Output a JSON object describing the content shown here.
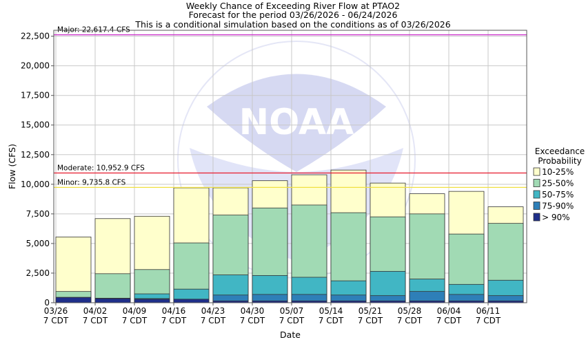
{
  "chart_data": {
    "type": "bar",
    "title": "Weekly Chance of Exceeding River Flow at PTAO2",
    "subtitle_lines": [
      "Forecast for the period 03/26/2026 - 06/24/2026",
      "This is a conditional simulation based on the conditions as of 03/26/2026"
    ],
    "xlabel": "Date",
    "ylabel": "Flow (CFS)",
    "ylim": [
      0,
      23000
    ],
    "yticks": [
      0,
      2500,
      5000,
      7500,
      10000,
      12500,
      15000,
      17500,
      20000,
      22500
    ],
    "ytick_labels": [
      "0",
      "2,500",
      "5,000",
      "7,500",
      "10,000",
      "12,500",
      "15,000",
      "17,500",
      "20,000",
      "22,500"
    ],
    "categories": [
      "03/26",
      "04/02",
      "04/09",
      "04/16",
      "04/23",
      "04/30",
      "05/07",
      "05/14",
      "05/21",
      "05/28",
      "06/04",
      "06/11"
    ],
    "category_sublabel": "7 CDT",
    "grid": true,
    "legend_title": [
      "Exceedance",
      "Probability"
    ],
    "legend_position": "right",
    "series": [
      {
        "name": "> 90%",
        "color": "#1f2f8a",
        "values": [
          450,
          350,
          300,
          300,
          150,
          150,
          150,
          150,
          150,
          150,
          150,
          150
        ]
      },
      {
        "name": "75-90%",
        "color": "#2e7fb8",
        "values": [
          450,
          380,
          350,
          280,
          650,
          700,
          700,
          650,
          600,
          950,
          700,
          600
        ]
      },
      {
        "name": "50-75%",
        "color": "#41b6c4",
        "values": [
          450,
          380,
          750,
          1150,
          2350,
          2300,
          2150,
          1850,
          2650,
          2000,
          1550,
          1900
        ]
      },
      {
        "name": "25-50%",
        "color": "#a1dab4",
        "values": [
          950,
          2450,
          2800,
          5050,
          7400,
          8000,
          8250,
          7600,
          7250,
          7500,
          5800,
          6700
        ]
      },
      {
        "name": "10-25%",
        "color": "#ffffcc",
        "values": [
          5550,
          7100,
          7300,
          9700,
          9700,
          10300,
          10800,
          11200,
          10100,
          9200,
          9400,
          8100
        ]
      }
    ],
    "thresholds": [
      {
        "label": "Major: 22,617.4 CFS",
        "value": 22617.4,
        "color": "#cc33cc"
      },
      {
        "label": "Moderate: 10,952.9 CFS",
        "value": 10952.9,
        "color": "#e8283a"
      },
      {
        "label": "Minor: 9,735.8 CFS",
        "value": 9735.8,
        "color": "#f0e040"
      }
    ],
    "watermark": "NOAA"
  }
}
